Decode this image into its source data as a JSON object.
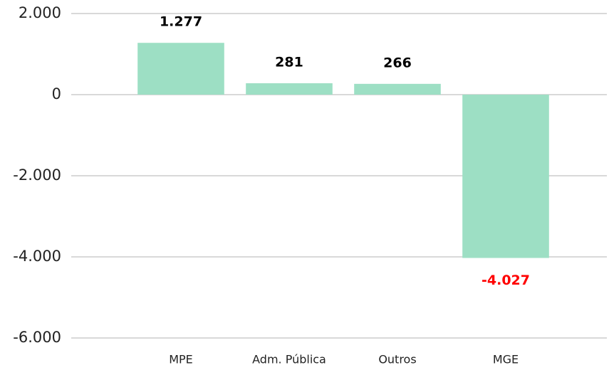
{
  "chart_data": {
    "type": "bar",
    "categories": [
      "MPE",
      "Adm. Pública",
      "Outros",
      "MGE"
    ],
    "values": [
      1277,
      281,
      266,
      -4027
    ],
    "value_labels": [
      "1.277",
      "281",
      "266",
      "-4.027"
    ],
    "color": "#9ddfc4",
    "label_color": "#000000",
    "negative_label_color": "#ff0000",
    "ylim": [
      -6000,
      2000
    ],
    "yticks": [
      {
        "value": 2000,
        "label": "2.000"
      },
      0,
      {
        "value": -2000,
        "label": "-2.000"
      },
      {
        "value": -4000,
        "label": "-4.000"
      },
      {
        "value": -6000,
        "label": "-6.000"
      }
    ],
    "grid": true
  }
}
